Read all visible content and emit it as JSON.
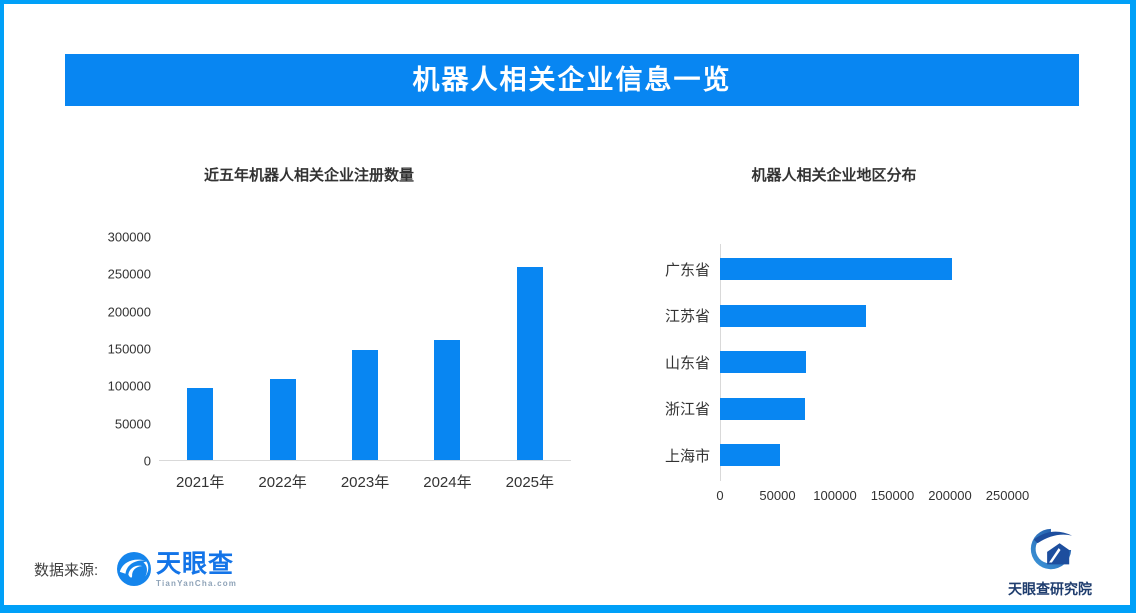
{
  "page": {
    "title": "机器人相关企业信息一览"
  },
  "chart_data": [
    {
      "type": "bar",
      "title": "近五年机器人相关企业注册数量",
      "categories": [
        "2021年",
        "2022年",
        "2023年",
        "2024年",
        "2025年"
      ],
      "values": [
        96000,
        108000,
        147000,
        161000,
        258000
      ],
      "xlabel": "",
      "ylabel": "",
      "ylim": [
        0,
        300000
      ],
      "yticks": [
        0,
        50000,
        100000,
        150000,
        200000,
        250000,
        300000
      ],
      "grid": false,
      "legend": "none",
      "bar_color": "#0886f2"
    },
    {
      "type": "bar",
      "orientation": "horizontal",
      "title": "机器人相关企业地区分布",
      "categories": [
        "广东省",
        "江苏省",
        "山东省",
        "浙江省",
        "上海市"
      ],
      "values": [
        202000,
        127000,
        75000,
        74000,
        52000
      ],
      "xlabel": "",
      "ylabel": "",
      "xlim": [
        0,
        250000
      ],
      "xticks": [
        0,
        50000,
        100000,
        150000,
        200000,
        250000
      ],
      "grid": false,
      "legend": "none",
      "bar_color": "#0886f2"
    }
  ],
  "footer": {
    "source_label": "数据来源:",
    "tyc_logo": {
      "name": "天眼查",
      "domain": "TianYanCha.com"
    },
    "institute": "天眼查研究院"
  },
  "icons": {
    "tyc_eye": "tianyancha-eye-icon",
    "institute_mark": "tianyancha-institute-icon"
  },
  "colors": {
    "banner_blue": "#0886f2",
    "bar_blue": "#0886f2",
    "frame_border_blue": "#00a0f8",
    "axis_gray": "#d9d9d9",
    "text_dark": "#333333",
    "tyc_blue": "#1374e8",
    "institute_navy": "#1f3d6e"
  }
}
